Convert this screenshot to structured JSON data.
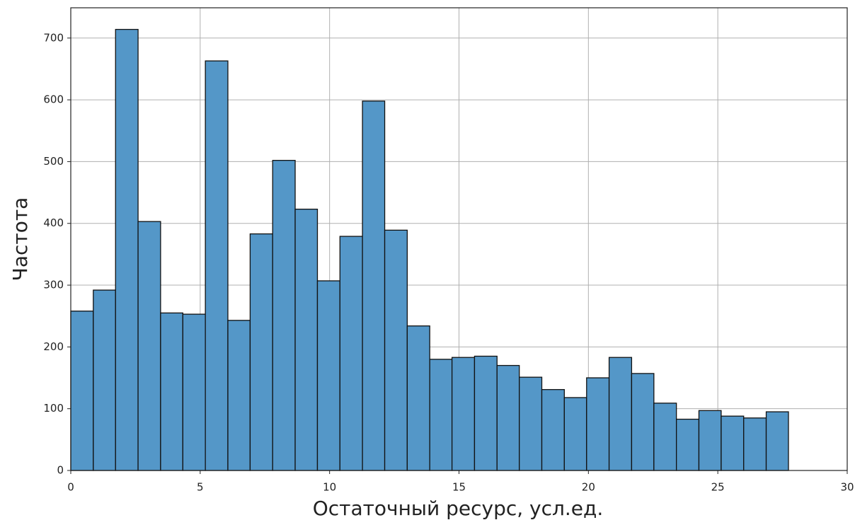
{
  "chart_data": {
    "type": "histogram",
    "xlabel": "Остаточный ресурс, усл.ед.",
    "ylabel": "Частота",
    "bins": [
      0,
      0.87,
      1.73,
      2.6,
      3.47,
      4.33,
      5.2,
      6.07,
      6.93,
      7.8,
      8.67,
      9.53,
      10.4,
      11.27,
      12.13,
      13.0,
      13.87,
      14.73,
      15.6,
      16.47,
      17.33,
      18.2,
      19.07,
      19.93,
      20.8,
      21.67,
      22.53,
      23.4,
      24.27,
      25.13,
      26.0,
      26.87,
      27.73
    ],
    "counts": [
      258,
      292,
      714,
      403,
      255,
      253,
      663,
      243,
      383,
      502,
      423,
      307,
      379,
      598,
      389,
      234,
      180,
      183,
      185,
      170,
      151,
      131,
      118,
      150,
      183,
      157,
      109,
      83,
      97,
      88,
      85,
      95
    ],
    "color": "#5497c8",
    "xlim": [
      0,
      30
    ],
    "xticks": [
      0,
      5,
      10,
      15,
      20,
      25,
      30
    ],
    "ylim": [
      0,
      749
    ],
    "yticks": [
      0,
      100,
      200,
      300,
      400,
      500,
      600,
      700
    ],
    "grid": true
  }
}
